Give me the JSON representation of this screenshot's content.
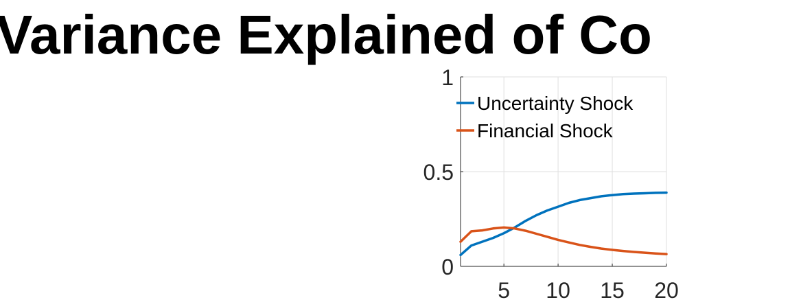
{
  "chart_data": {
    "type": "line",
    "title": "Variance Explained of Co",
    "xlabel": "",
    "ylabel": "",
    "xlim": [
      1,
      20
    ],
    "ylim": [
      0,
      1
    ],
    "x_ticks": [
      5,
      10,
      15,
      20
    ],
    "y_ticks": [
      0,
      0.5,
      1
    ],
    "x_tick_labels": [
      "5",
      "10",
      "15",
      "20"
    ],
    "y_tick_labels": [
      "0",
      "0.5",
      "1"
    ],
    "grid": true,
    "legend_position": "top-left",
    "x": [
      1,
      2,
      3,
      4,
      5,
      6,
      7,
      8,
      9,
      10,
      11,
      12,
      13,
      14,
      15,
      16,
      17,
      18,
      19,
      20
    ],
    "series": [
      {
        "name": "Uncertainty Shock",
        "color": "#0072BD",
        "values": [
          0.06,
          0.11,
          0.13,
          0.15,
          0.175,
          0.205,
          0.24,
          0.27,
          0.295,
          0.315,
          0.335,
          0.35,
          0.36,
          0.37,
          0.376,
          0.381,
          0.384,
          0.386,
          0.388,
          0.389
        ]
      },
      {
        "name": "Financial Shock",
        "color": "#D95319",
        "values": [
          0.13,
          0.185,
          0.19,
          0.2,
          0.205,
          0.2,
          0.188,
          0.172,
          0.156,
          0.14,
          0.126,
          0.113,
          0.103,
          0.094,
          0.087,
          0.081,
          0.076,
          0.072,
          0.068,
          0.065
        ]
      }
    ]
  }
}
